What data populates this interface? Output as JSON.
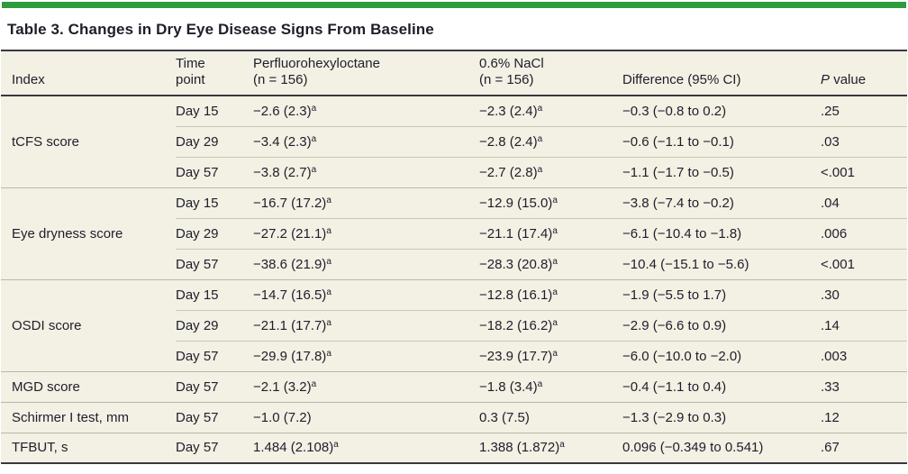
{
  "colors": {
    "accent_green": "#2e9b3e",
    "table_background": "#f3f0e4",
    "rule_dark": "#383840",
    "text": "#1e1e2a"
  },
  "title": "Table 3. Changes in Dry Eye Disease Signs From Baseline",
  "table": {
    "header": {
      "index": "Index",
      "time_line1": "Time",
      "time_line2": "point",
      "pfho_line1": "Perfluorohexyloctane",
      "pfho_line2": "(n = 156)",
      "nacl_line1": "0.6% NaCl",
      "nacl_line2": "(n = 156)",
      "difference": "Difference (95% CI)",
      "p_italic": "P",
      "p_rest": "value"
    },
    "rows": [
      {
        "index": "tCFS score",
        "time": "Day 15",
        "pfho": "−2.6 (2.3)",
        "pfho_sup": "a",
        "nacl": "−2.3 (2.4)",
        "nacl_sup": "a",
        "diff": "−0.3 (−0.8 to 0.2)",
        "p": ".25"
      },
      {
        "time": "Day 29",
        "pfho": "−3.4 (2.3)",
        "pfho_sup": "a",
        "nacl": "−2.8 (2.4)",
        "nacl_sup": "a",
        "diff": "−0.6 (−1.1 to −0.1)",
        "p": ".03"
      },
      {
        "time": "Day 57",
        "pfho": "−3.8 (2.7)",
        "pfho_sup": "a",
        "nacl": "−2.7 (2.8)",
        "nacl_sup": "a",
        "diff": "−1.1 (−1.7 to −0.5)",
        "p": "<.001"
      },
      {
        "index": "Eye dryness score",
        "time": "Day 15",
        "pfho": "−16.7 (17.2)",
        "pfho_sup": "a",
        "nacl": "−12.9 (15.0)",
        "nacl_sup": "a",
        "diff": "−3.8 (−7.4 to −0.2)",
        "p": ".04"
      },
      {
        "time": "Day 29",
        "pfho": "−27.2 (21.1)",
        "pfho_sup": "a",
        "nacl": "−21.1 (17.4)",
        "nacl_sup": "a",
        "diff": "−6.1 (−10.4 to −1.8)",
        "p": ".006"
      },
      {
        "time": "Day 57",
        "pfho": "−38.6 (21.9)",
        "pfho_sup": "a",
        "nacl": "−28.3 (20.8)",
        "nacl_sup": "a",
        "diff": "−10.4 (−15.1 to −5.6)",
        "p": "<.001"
      },
      {
        "index": "OSDI score",
        "time": "Day 15",
        "pfho": "−14.7 (16.5)",
        "pfho_sup": "a",
        "nacl": "−12.8 (16.1)",
        "nacl_sup": "a",
        "diff": "−1.9 (−5.5 to 1.7)",
        "p": ".30"
      },
      {
        "time": "Day 29",
        "pfho": "−21.1 (17.7)",
        "pfho_sup": "a",
        "nacl": "−18.2 (16.2)",
        "nacl_sup": "a",
        "diff": "−2.9 (−6.6 to 0.9)",
        "p": ".14"
      },
      {
        "time": "Day 57",
        "pfho": "−29.9 (17.8)",
        "pfho_sup": "a",
        "nacl": "−23.9 (17.7)",
        "nacl_sup": "a",
        "diff": "−6.0 (−10.0 to −2.0)",
        "p": ".003"
      },
      {
        "index": "MGD score",
        "time": "Day 57",
        "pfho": "−2.1 (3.2)",
        "pfho_sup": "a",
        "nacl": "−1.8 (3.4)",
        "nacl_sup": "a",
        "diff": "−0.4 (−1.1 to 0.4)",
        "p": ".33"
      },
      {
        "index": "Schirmer I test, mm",
        "time": "Day 57",
        "pfho": "−1.0 (7.2)",
        "nacl": "0.3 (7.5)",
        "diff": "−1.3 (−2.9 to 0.3)",
        "p": ".12"
      },
      {
        "index": "TFBUT, s",
        "time": "Day 57",
        "pfho": "1.484 (2.108)",
        "pfho_sup": "a",
        "nacl": "1.388 (1.872)",
        "nacl_sup": "a",
        "diff": "0.096 (−0.349 to 0.541)",
        "p": ".67"
      }
    ]
  }
}
